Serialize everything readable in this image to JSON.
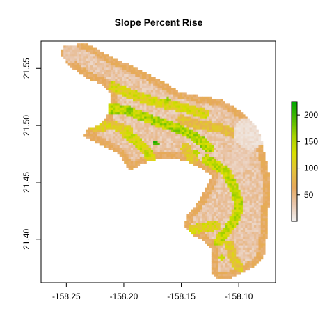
{
  "chart_data": {
    "type": "heatmap",
    "title": "Slope Percent Rise",
    "x_ticks": [
      "-158.25",
      "-158.20",
      "-158.15",
      "-158.10"
    ],
    "x_tick_values": [
      -158.25,
      -158.2,
      -158.15,
      -158.1
    ],
    "y_ticks": [
      "21.40",
      "21.45",
      "21.50",
      "21.55"
    ],
    "y_tick_values": [
      21.4,
      21.45,
      21.5,
      21.55
    ],
    "xlim": [
      -158.272,
      -158.068
    ],
    "ylim": [
      21.362,
      21.574
    ],
    "legend": {
      "placement": "right",
      "ticks": [
        "50",
        "100",
        "150",
        "200"
      ],
      "tick_values": [
        50,
        100,
        150,
        200
      ],
      "range": [
        0,
        225
      ],
      "colors": [
        "#f2f2f2",
        "#e9c7ae",
        "#e6a85c",
        "#e5c23a",
        "#d8df00",
        "#a6d200",
        "#4fb900",
        "#00a600"
      ]
    },
    "region_outline": [
      [
        -158.252,
        21.57
      ],
      [
        -158.232,
        21.572
      ],
      [
        -158.212,
        21.56
      ],
      [
        -158.195,
        21.553
      ],
      [
        -158.178,
        21.545
      ],
      [
        -158.165,
        21.538
      ],
      [
        -158.152,
        21.53
      ],
      [
        -158.14,
        21.527
      ],
      [
        -158.128,
        21.525
      ],
      [
        -158.116,
        21.523
      ],
      [
        -158.107,
        21.518
      ],
      [
        -158.098,
        21.512
      ],
      [
        -158.09,
        21.505
      ],
      [
        -158.084,
        21.497
      ],
      [
        -158.08,
        21.487
      ],
      [
        -158.078,
        21.477
      ],
      [
        -158.075,
        21.465
      ],
      [
        -158.073,
        21.452
      ],
      [
        -158.073,
        21.44
      ],
      [
        -158.074,
        21.428
      ],
      [
        -158.075,
        21.415
      ],
      [
        -158.076,
        21.4
      ],
      [
        -158.077,
        21.388
      ],
      [
        -158.083,
        21.379
      ],
      [
        -158.092,
        21.373
      ],
      [
        -158.102,
        21.368
      ],
      [
        -158.111,
        21.365
      ],
      [
        -158.12,
        21.365
      ],
      [
        -158.124,
        21.372
      ],
      [
        -158.123,
        21.384
      ],
      [
        -158.124,
        21.393
      ],
      [
        -158.133,
        21.4
      ],
      [
        -158.142,
        21.405
      ],
      [
        -158.147,
        21.412
      ],
      [
        -158.145,
        21.421
      ],
      [
        -158.138,
        21.428
      ],
      [
        -158.133,
        21.437
      ],
      [
        -158.128,
        21.446
      ],
      [
        -158.124,
        21.456
      ],
      [
        -158.133,
        21.463
      ],
      [
        -158.143,
        21.468
      ],
      [
        -158.157,
        21.471
      ],
      [
        -158.172,
        21.47
      ],
      [
        -158.185,
        21.466
      ],
      [
        -158.195,
        21.46
      ],
      [
        -158.2,
        21.468
      ],
      [
        -158.205,
        21.475
      ],
      [
        -158.215,
        21.48
      ],
      [
        -158.225,
        21.485
      ],
      [
        -158.235,
        21.49
      ],
      [
        -158.232,
        21.497
      ],
      [
        -158.222,
        21.5
      ],
      [
        -158.215,
        21.508
      ],
      [
        -158.213,
        21.518
      ],
      [
        -158.211,
        21.528
      ],
      [
        -158.219,
        21.536
      ],
      [
        -158.229,
        21.54
      ],
      [
        -158.241,
        21.547
      ],
      [
        -158.25,
        21.555
      ],
      [
        -158.255,
        21.563
      ]
    ],
    "high_slope_bands": [
      {
        "level": 120,
        "points": [
          [
            -158.21,
            21.534
          ],
          [
            -158.195,
            21.528
          ],
          [
            -158.178,
            21.522
          ],
          [
            -158.162,
            21.518
          ],
          [
            -158.146,
            21.515
          ],
          [
            -158.13,
            21.51
          ]
        ]
      },
      {
        "level": 150,
        "points": [
          [
            -158.218,
            21.515
          ],
          [
            -158.2,
            21.514
          ],
          [
            -158.184,
            21.508
          ],
          [
            -158.168,
            21.502
          ],
          [
            -158.152,
            21.497
          ],
          [
            -158.138,
            21.49
          ],
          [
            -158.126,
            21.48
          ]
        ]
      },
      {
        "level": 130,
        "points": [
          [
            -158.198,
            21.492
          ],
          [
            -158.186,
            21.484
          ],
          [
            -158.178,
            21.475
          ],
          [
            -158.176,
            21.466
          ]
        ]
      },
      {
        "level": 110,
        "points": [
          [
            -158.225,
            21.498
          ],
          [
            -158.21,
            21.5
          ],
          [
            -158.196,
            21.495
          ]
        ]
      },
      {
        "level": 140,
        "points": [
          [
            -158.128,
            21.47
          ],
          [
            -158.112,
            21.46
          ],
          [
            -158.104,
            21.445
          ],
          [
            -158.1,
            21.43
          ],
          [
            -158.103,
            21.418
          ],
          [
            -158.11,
            21.408
          ],
          [
            -158.118,
            21.398
          ]
        ]
      },
      {
        "level": 120,
        "points": [
          [
            -158.12,
            21.412
          ],
          [
            -158.132,
            21.41
          ],
          [
            -158.14,
            21.408
          ]
        ]
      },
      {
        "level": 100,
        "points": [
          [
            -158.108,
            21.395
          ],
          [
            -158.105,
            21.383
          ],
          [
            -158.1,
            21.375
          ]
        ]
      },
      {
        "level": 90,
        "points": [
          [
            -158.15,
            21.505
          ],
          [
            -158.135,
            21.5
          ],
          [
            -158.118,
            21.498
          ],
          [
            -158.102,
            21.492
          ]
        ]
      },
      {
        "level": 100,
        "points": [
          [
            -158.146,
            21.48
          ],
          [
            -158.14,
            21.47
          ]
        ]
      }
    ],
    "peaks": [
      {
        "lon": -158.172,
        "lat": 21.484,
        "value": 220
      },
      {
        "lon": -158.195,
        "lat": 21.514,
        "value": 190
      },
      {
        "lon": -158.153,
        "lat": 21.494,
        "value": 185
      },
      {
        "lon": -158.162,
        "lat": 21.522,
        "value": 175
      },
      {
        "lon": -158.103,
        "lat": 21.439,
        "value": 170
      },
      {
        "lon": -158.111,
        "lat": 21.408,
        "value": 165
      },
      {
        "lon": -158.18,
        "lat": 21.476,
        "value": 160
      },
      {
        "lon": -158.137,
        "lat": 21.476,
        "value": 160
      },
      {
        "lon": -158.115,
        "lat": 21.384,
        "value": 150
      }
    ],
    "flat_areas": [
      {
        "lon": -158.09,
        "lat": 21.493,
        "value": 8,
        "spread": 0.014
      },
      {
        "lon": -158.1,
        "lat": 21.47,
        "value": 22,
        "spread": 0.01
      },
      {
        "lon": -158.245,
        "lat": 21.563,
        "value": 28,
        "spread": 0.008
      }
    ],
    "grid": false
  }
}
